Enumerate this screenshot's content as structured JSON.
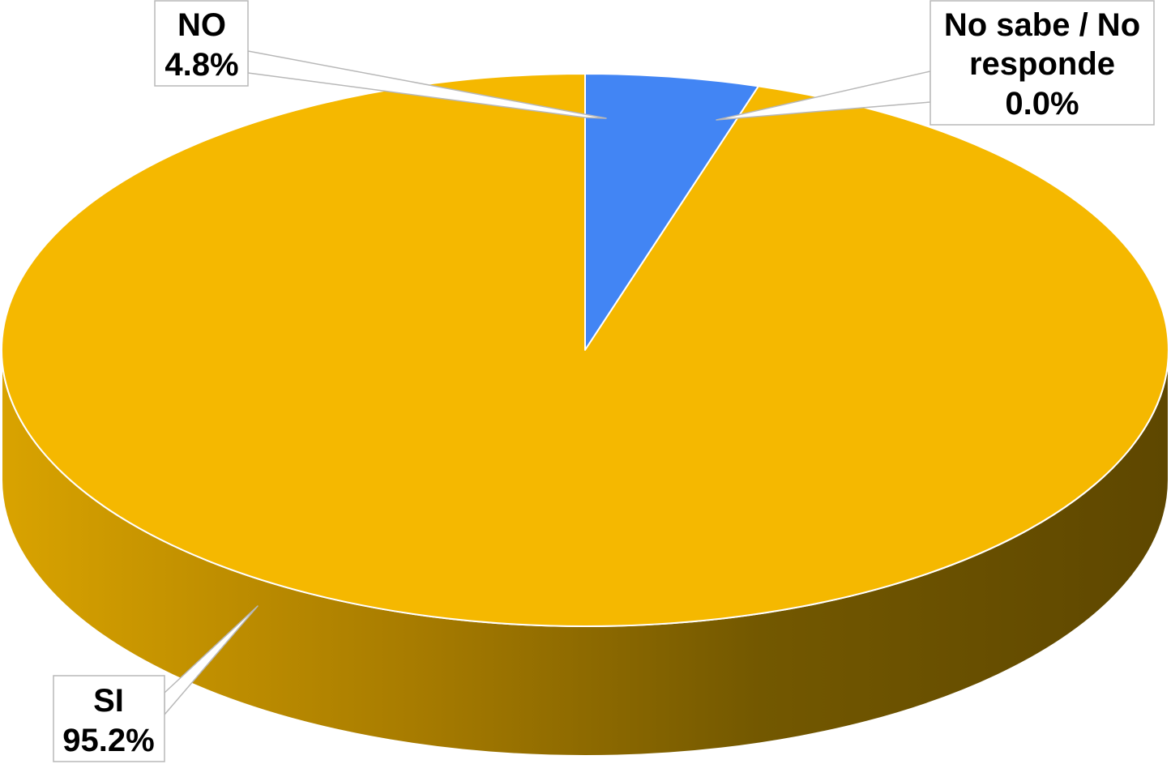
{
  "chart_data": {
    "type": "pie",
    "slices": [
      {
        "label": "SI",
        "value": 95.2,
        "value_label": "95.2%",
        "color": "#F5B800"
      },
      {
        "label": "NO",
        "value": 4.8,
        "value_label": "4.8%",
        "color": "#4285F4"
      },
      {
        "label": "No sabe / No responde",
        "value": 0.0,
        "value_label": "0.0%",
        "color": "#E0E0E0"
      }
    ],
    "style": "3d",
    "legend": "none"
  },
  "callouts": {
    "no": {
      "lines": [
        "NO",
        "4.8%"
      ]
    },
    "nsnr": {
      "lines": [
        "No sabe / No",
        "responde",
        "0.0%"
      ]
    },
    "si": {
      "lines": [
        "SI",
        "95.2%"
      ]
    }
  }
}
